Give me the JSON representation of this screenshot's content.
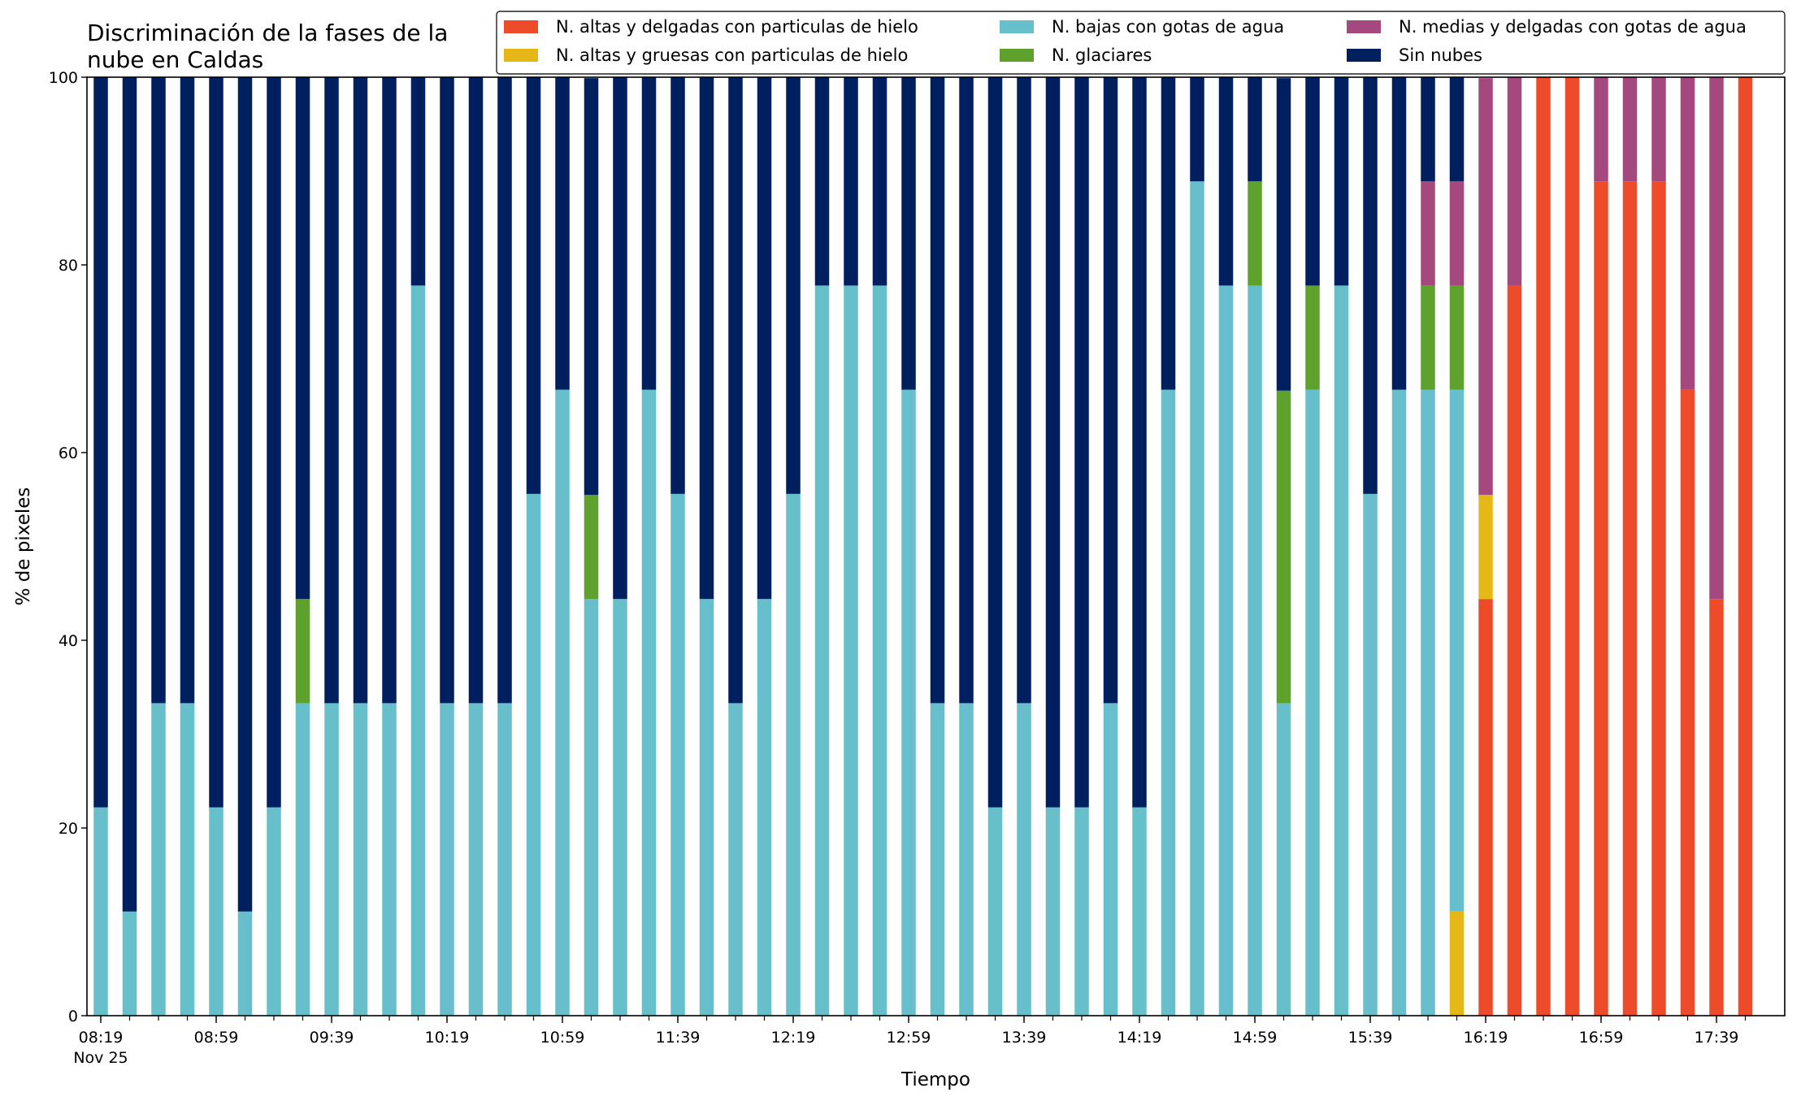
{
  "chart_data": {
    "type": "bar",
    "stacked": true,
    "title": [
      "Discriminación de la fases de la",
      "nube en Caldas"
    ],
    "xlabel": "Tiempo",
    "ylabel": "% de pixeles",
    "ylim": [
      0,
      100
    ],
    "yticks": [
      0,
      20,
      40,
      60,
      80,
      100
    ],
    "grid": false,
    "legend_position": "top-right",
    "bar_count": 58,
    "xticks": [
      {
        "index": 0,
        "label": "08:19",
        "sublabel": "Nov 25"
      },
      {
        "index": 4,
        "label": "08:59"
      },
      {
        "index": 8,
        "label": "09:39"
      },
      {
        "index": 12,
        "label": "10:19"
      },
      {
        "index": 16,
        "label": "10:59"
      },
      {
        "index": 20,
        "label": "11:39"
      },
      {
        "index": 24,
        "label": "12:19"
      },
      {
        "index": 28,
        "label": "12:59"
      },
      {
        "index": 32,
        "label": "13:39"
      },
      {
        "index": 36,
        "label": "14:19"
      },
      {
        "index": 40,
        "label": "14:59"
      },
      {
        "index": 44,
        "label": "15:39"
      },
      {
        "index": 48,
        "label": "16:19"
      },
      {
        "index": 52,
        "label": "16:59"
      },
      {
        "index": 56,
        "label": "17:39"
      }
    ],
    "series": [
      {
        "name": "N. altas y delgadas con particulas de hielo",
        "color": "#ee4b2b",
        "values": [
          0,
          0,
          0,
          0,
          0,
          0,
          0,
          0,
          0,
          0,
          0,
          0,
          0,
          0,
          0,
          0,
          0,
          0,
          0,
          0,
          0,
          0,
          0,
          0,
          0,
          0,
          0,
          0,
          0,
          0,
          0,
          0,
          0,
          0,
          0,
          0,
          0,
          0,
          0,
          0,
          0,
          0,
          0,
          0,
          0,
          0,
          0,
          0,
          44.4,
          77.8,
          100,
          100,
          88.9,
          88.9,
          88.9,
          66.7,
          44.4,
          100
        ]
      },
      {
        "name": "N. altas y gruesas con particulas de hielo",
        "color": "#e6b817",
        "values": [
          0,
          0,
          0,
          0,
          0,
          0,
          0,
          0,
          0,
          0,
          0,
          0,
          0,
          0,
          0,
          0,
          0,
          0,
          0,
          0,
          0,
          0,
          0,
          0,
          0,
          0,
          0,
          0,
          0,
          0,
          0,
          0,
          0,
          0,
          0,
          0,
          0,
          0,
          0,
          0,
          0,
          0,
          0,
          0,
          0,
          0,
          0,
          11.1,
          11.1,
          0,
          0,
          0,
          0,
          0,
          0,
          0,
          0,
          0
        ]
      },
      {
        "name": "N. bajas con gotas de agua",
        "color": "#66bfca",
        "values": [
          22.2,
          11.1,
          33.3,
          33.3,
          22.2,
          11.1,
          22.2,
          33.3,
          33.3,
          33.3,
          33.3,
          77.8,
          33.3,
          33.3,
          33.3,
          55.6,
          66.7,
          44.4,
          44.4,
          66.7,
          55.6,
          44.4,
          33.3,
          44.4,
          55.6,
          77.8,
          77.8,
          77.8,
          66.7,
          33.3,
          33.3,
          22.2,
          33.3,
          22.2,
          22.2,
          33.3,
          22.2,
          66.7,
          88.9,
          77.8,
          77.8,
          33.3,
          66.7,
          77.8,
          55.6,
          66.7,
          66.7,
          55.6,
          0,
          0,
          0,
          0,
          0,
          0,
          0,
          0,
          0,
          0
        ]
      },
      {
        "name": "N. glaciares",
        "color": "#5ea22d",
        "values": [
          0,
          0,
          0,
          0,
          0,
          0,
          0,
          11.1,
          0,
          0,
          0,
          0,
          0,
          0,
          0,
          0,
          0,
          11.1,
          0,
          0,
          0,
          0,
          0,
          0,
          0,
          0,
          0,
          0,
          0,
          0,
          0,
          0,
          0,
          0,
          0,
          0,
          0,
          0,
          0,
          0,
          11.1,
          33.3,
          11.1,
          0,
          0,
          0,
          11.1,
          11.1,
          0,
          0,
          0,
          0,
          0,
          0,
          0,
          0,
          0,
          0
        ]
      },
      {
        "name": "N. medias y delgadas con gotas de agua",
        "color": "#a4487e",
        "values": [
          0,
          0,
          0,
          0,
          0,
          0,
          0,
          0,
          0,
          0,
          0,
          0,
          0,
          0,
          0,
          0,
          0,
          0,
          0,
          0,
          0,
          0,
          0,
          0,
          0,
          0,
          0,
          0,
          0,
          0,
          0,
          0,
          0,
          0,
          0,
          0,
          0,
          0,
          0,
          0,
          0,
          0,
          0,
          0,
          0,
          0,
          11.1,
          11.1,
          44.4,
          22.2,
          0,
          0,
          11.1,
          11.1,
          11.1,
          33.3,
          55.6,
          0
        ]
      },
      {
        "name": "Sin nubes",
        "color": "#001f5e",
        "values": [
          77.8,
          88.9,
          66.7,
          66.7,
          77.8,
          88.9,
          77.8,
          55.6,
          66.7,
          66.7,
          66.7,
          22.2,
          66.7,
          66.7,
          66.7,
          44.4,
          33.3,
          44.4,
          55.6,
          33.3,
          44.4,
          55.6,
          66.7,
          55.6,
          44.4,
          22.2,
          22.2,
          22.2,
          33.3,
          66.7,
          66.7,
          77.8,
          66.7,
          77.8,
          77.8,
          66.7,
          77.8,
          33.3,
          11.1,
          22.2,
          11.1,
          33.3,
          22.2,
          22.2,
          44.4,
          33.3,
          11.1,
          11.1,
          0,
          0,
          0,
          0,
          0,
          0,
          0,
          0,
          0,
          0
        ]
      }
    ],
    "legend_order": [
      0,
      1,
      2,
      3,
      4,
      5
    ]
  }
}
